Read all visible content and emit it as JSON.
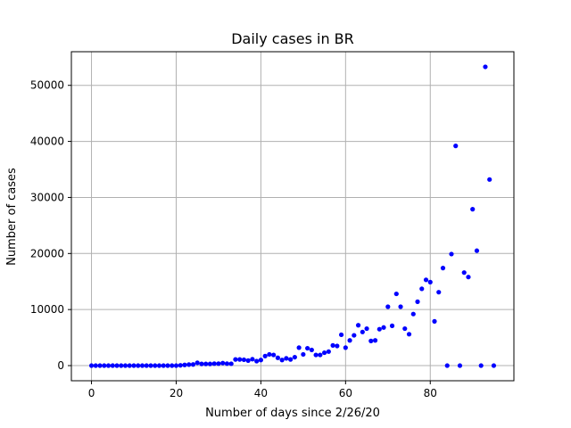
{
  "chart_data": {
    "type": "scatter",
    "title": "Daily cases in BR",
    "xlabel": "Number of days since 2/26/20",
    "ylabel": "Number of cases",
    "xlim": [
      -4.75,
      99.75
    ],
    "ylim": [
      -2700,
      56000
    ],
    "xticks": [
      0,
      20,
      40,
      60,
      80
    ],
    "yticks": [
      0,
      10000,
      20000,
      30000,
      40000,
      50000
    ],
    "grid": true,
    "marker_color": "#0000ff",
    "series": [
      {
        "x": [
          0,
          1,
          2,
          3,
          4,
          5,
          6,
          7,
          8,
          9,
          10,
          11,
          12,
          13,
          14,
          15,
          16,
          17,
          18,
          19,
          20,
          21,
          22,
          23,
          24,
          25,
          26,
          27,
          28,
          29,
          30,
          31,
          32,
          33,
          34,
          35,
          36,
          37,
          38,
          39,
          40,
          41,
          42,
          43,
          44,
          45,
          46,
          47,
          48,
          49,
          50,
          51,
          52,
          53,
          54,
          55,
          56,
          57,
          58,
          59,
          60,
          61,
          62,
          63,
          64,
          65,
          66,
          67,
          68,
          69,
          70,
          71,
          72,
          73,
          74,
          75,
          76,
          77,
          78,
          79,
          80,
          81,
          82,
          83,
          84,
          85,
          86,
          87,
          88,
          89,
          90,
          91,
          92,
          93,
          94,
          95
        ],
        "y": [
          0,
          0,
          0,
          0,
          0,
          0,
          0,
          0,
          0,
          0,
          0,
          0,
          0,
          0,
          0,
          0,
          0,
          0,
          0,
          0,
          0,
          50,
          120,
          180,
          200,
          500,
          300,
          300,
          300,
          350,
          350,
          450,
          350,
          330,
          1100,
          1100,
          1050,
          900,
          1150,
          800,
          1000,
          1700,
          2000,
          1900,
          1400,
          1000,
          1300,
          1100,
          1500,
          3200,
          2000,
          3100,
          2800,
          1900,
          1900,
          2300,
          2500,
          3600,
          3500,
          5500,
          3200,
          4500,
          5400,
          7200,
          6000,
          6600,
          4400,
          4500,
          6500,
          6800,
          10500,
          7100,
          12800,
          10500,
          6600,
          5600,
          9200,
          11400,
          13700,
          15300,
          14900,
          7900,
          13100,
          17400,
          0,
          19900,
          39200,
          0,
          16600,
          15800,
          27900,
          20500,
          0,
          53300,
          33200,
          0
        ]
      }
    ]
  }
}
